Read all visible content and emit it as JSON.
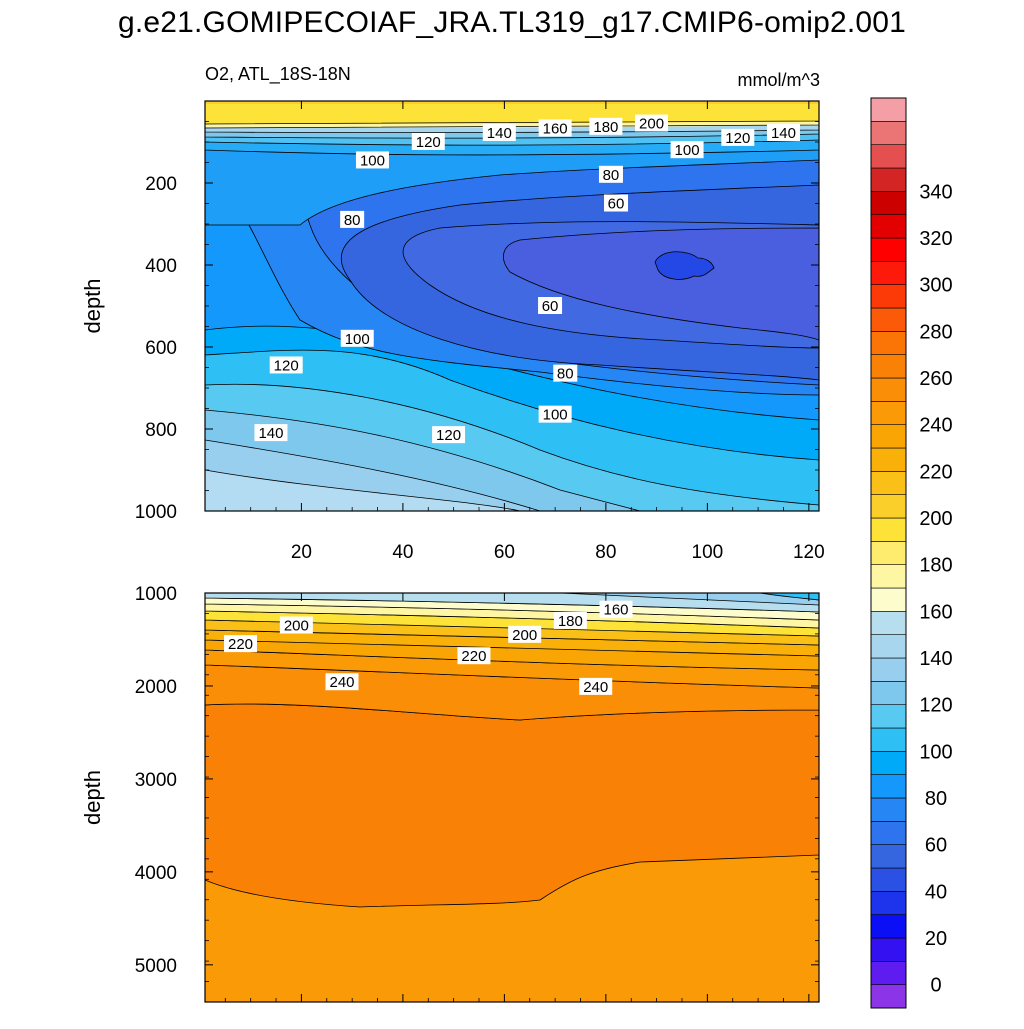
{
  "figure_title": "g.e21.GOMIPECOIAF_JRA.TL319_g17.CMIP6-omip2.001",
  "chart_data": [
    {
      "type": "contour",
      "panel": "upper",
      "title_left": "O2, ATL_18S-18N",
      "title_right": "mmol/m^3",
      "xlabel": "",
      "ylabel": "depth",
      "xlim": [
        1,
        122
      ],
      "ylim": [
        1000,
        0
      ],
      "x_ticks": [
        20,
        40,
        60,
        80,
        100,
        120
      ],
      "y_ticks": [
        200,
        400,
        600,
        800,
        1000
      ],
      "contour_labels": [
        {
          "text": "200",
          "x": 89,
          "y": 55
        },
        {
          "text": "180",
          "x": 80,
          "y": 63
        },
        {
          "text": "160",
          "x": 70,
          "y": 67
        },
        {
          "text": "140",
          "x": 59,
          "y": 78
        },
        {
          "text": "140",
          "x": 115,
          "y": 78
        },
        {
          "text": "120",
          "x": 45,
          "y": 100
        },
        {
          "text": "120",
          "x": 106,
          "y": 90
        },
        {
          "text": "100",
          "x": 34,
          "y": 145
        },
        {
          "text": "100",
          "x": 96,
          "y": 120
        },
        {
          "text": "80",
          "x": 81,
          "y": 180
        },
        {
          "text": "80",
          "x": 30,
          "y": 290
        },
        {
          "text": "60",
          "x": 82,
          "y": 250
        },
        {
          "text": "60",
          "x": 69,
          "y": 500
        },
        {
          "text": "100",
          "x": 31,
          "y": 580
        },
        {
          "text": "120",
          "x": 17,
          "y": 645
        },
        {
          "text": "80",
          "x": 72,
          "y": 665
        },
        {
          "text": "100",
          "x": 70,
          "y": 765
        },
        {
          "text": "120",
          "x": 49,
          "y": 815
        },
        {
          "text": "140",
          "x": 14,
          "y": 810
        }
      ]
    },
    {
      "type": "contour",
      "panel": "lower",
      "xlabel": "",
      "ylabel": "depth",
      "xlim": [
        1,
        122
      ],
      "ylim": [
        5400,
        1000
      ],
      "y_ticks": [
        1000,
        2000,
        3000,
        4000,
        5000
      ],
      "contour_labels": [
        {
          "text": "160",
          "x": 82,
          "y": 1180
        },
        {
          "text": "180",
          "x": 73,
          "y": 1300
        },
        {
          "text": "200",
          "x": 19,
          "y": 1350
        },
        {
          "text": "200",
          "x": 64,
          "y": 1450
        },
        {
          "text": "220",
          "x": 8,
          "y": 1550
        },
        {
          "text": "220",
          "x": 54,
          "y": 1680
        },
        {
          "text": "240",
          "x": 28,
          "y": 1960
        },
        {
          "text": "240",
          "x": 78,
          "y": 2010
        }
      ]
    }
  ],
  "colorbar": {
    "tick_labels": [
      "0",
      "20",
      "40",
      "60",
      "80",
      "100",
      "120",
      "140",
      "160",
      "180",
      "200",
      "220",
      "240",
      "260",
      "280",
      "300",
      "320",
      "340"
    ],
    "colors": [
      "#8c35e8",
      "#5f1cf0",
      "#3311f0",
      "#0a0ff6",
      "#1e33ec",
      "#2b50e4",
      "#3566e0",
      "#2e74ee",
      "#2686f4",
      "#1598fb",
      "#00aaf8",
      "#2ebff5",
      "#58c9f1",
      "#7ec8ee",
      "#98cfee",
      "#a9d6ef",
      "#b6deef",
      "#fdfccc",
      "#fef6a2",
      "#fdec6e",
      "#fde237",
      "#fbcf29",
      "#fac018",
      "#f9b10a",
      "#f9a504",
      "#fa9a06",
      "#fa8e06",
      "#f98206",
      "#fa7506",
      "#fb5a08",
      "#fc3a08",
      "#fd1a0a",
      "#ff0000",
      "#e30000",
      "#cd0000",
      "#d42525",
      "#e45050",
      "#eb7575",
      "#f49fa5"
    ]
  }
}
